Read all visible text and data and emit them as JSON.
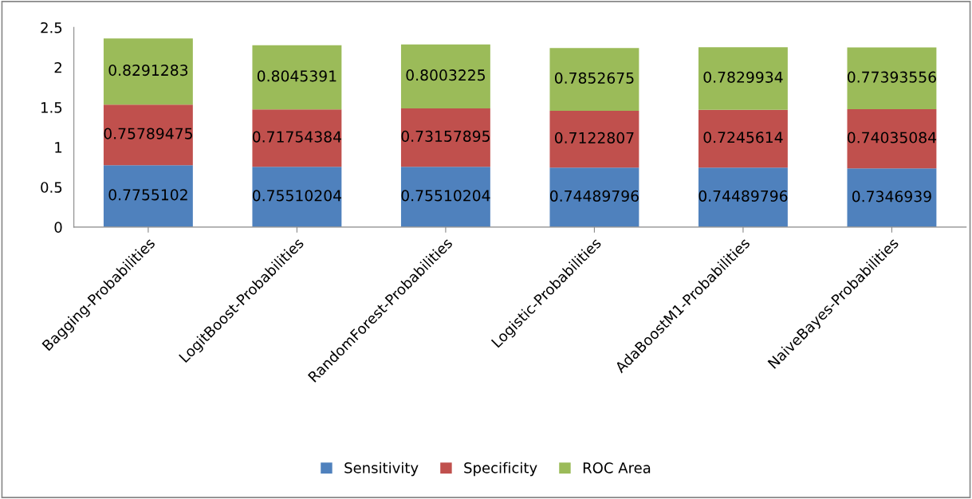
{
  "chart_data": {
    "type": "bar",
    "stacked": true,
    "categories": [
      "Bagging-Probabilities",
      "LogitBoost-Probabilities",
      "RandomForest-Probabilities",
      "Logistic-Probabilities",
      "AdaBoostM1-Probabilities",
      "NaiveBayes-Probabilities"
    ],
    "series": [
      {
        "name": "Sensitivity",
        "color": "#4f81bd",
        "values": [
          0.7755102,
          0.75510204,
          0.75510204,
          0.74489796,
          0.74489796,
          0.7346939
        ]
      },
      {
        "name": "Specificity",
        "color": "#c0504d",
        "values": [
          0.75789475,
          0.71754384,
          0.73157895,
          0.7122807,
          0.7245614,
          0.74035084
        ]
      },
      {
        "name": "ROC Area",
        "color": "#9bbb59",
        "values": [
          0.8291283,
          0.8045391,
          0.8003225,
          0.7852675,
          0.7829934,
          0.77393556
        ]
      }
    ],
    "ylim": [
      0,
      2.5
    ],
    "yticks": [
      0,
      0.5,
      1,
      1.5,
      2,
      2.5
    ],
    "data_labels": true,
    "grid": false,
    "legend": "bottom"
  }
}
